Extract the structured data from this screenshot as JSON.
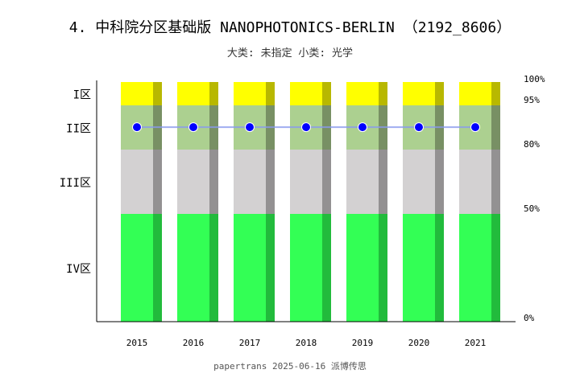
{
  "chart_data": {
    "type": "bar",
    "title": "4. 中科院分区基础版 NANOPHOTONICS-BERLIN （2192_8606）",
    "subtitle": "大类: 未指定 小类: 光学",
    "footer": "papertrans 2025-06-16 派博传思",
    "categories": [
      "2015",
      "2016",
      "2017",
      "2018",
      "2019",
      "2020",
      "2021"
    ],
    "zones": [
      {
        "label": "IV区",
        "from": 0,
        "to": 50,
        "color": "#33ff55",
        "shade": "#22bb3c"
      },
      {
        "label": "III区",
        "from": 50,
        "to": 80,
        "color": "#d3d1d2",
        "shade": "#939192"
      },
      {
        "label": "II区",
        "from": 80,
        "to": 95,
        "color": "#acd090",
        "shade": "#789064"
      },
      {
        "label": "I区",
        "from": 95,
        "to": 100,
        "color": "#ffff00",
        "shade": "#b8b800"
      }
    ],
    "right_ticks": [
      "0%",
      "50%",
      "80%",
      "95%",
      "100%"
    ],
    "series": [
      {
        "values": [
          87.6,
          87.6,
          87.6,
          87.6,
          87.6,
          87.6,
          87.6
        ],
        "color": "#0000ff",
        "line_color": "#8899ee"
      }
    ],
    "ylim": [
      0,
      100
    ]
  }
}
